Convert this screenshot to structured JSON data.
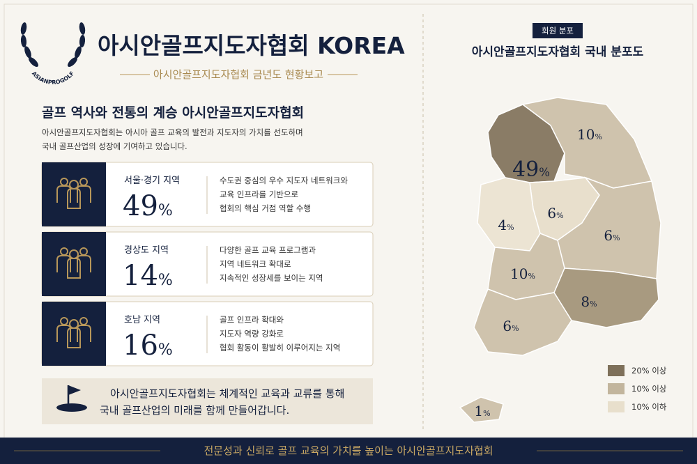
{
  "header": {
    "logo_text": "ASIANPROGOLF",
    "title": "아시안골프지도자협회 KOREA",
    "subtitle": "아시안골프지도자협회 금년도 현황보고"
  },
  "intro": {
    "heading": "골프 역사와 전통의 계승 아시안골프지도자협회",
    "lines": [
      "아시안골프지도자협회는 아시아 골프 교육의 발전과 지도자의 가치를 선도하며",
      "국내 골프산업의 성장에 기여하고 있습니다."
    ]
  },
  "cards": [
    {
      "region": "서울·경기 지역",
      "value": "49",
      "unit": "%",
      "lines": [
        "수도권 중심의 우수 지도자 네트워크와",
        "교육 인프라를 기반으로",
        "협회의 핵심 거점 역할 수행"
      ]
    },
    {
      "region": "경상도 지역",
      "value": "14",
      "unit": "%",
      "lines": [
        "다양한 골프 교육 프로그램과",
        "지역 네트워크 확대로",
        "지속적인 성장세를 보이는 지역"
      ]
    },
    {
      "region": "호남 지역",
      "value": "16",
      "unit": "%",
      "lines": [
        "골프 인프라 확대와",
        "지도자 역량 강화로",
        "협회 활동이 활발히 이루어지는 지역"
      ]
    }
  ],
  "banner": {
    "lines": [
      "아시안골프지도자협회는 체계적인 교육과 교류를 통해",
      "국내 골프산업의 미래를 함께 만들어갑니다."
    ]
  },
  "map": {
    "badge": "회원 분포",
    "title": "아시안골프지도자협회 국내 분포도",
    "regions": [
      {
        "value": "49",
        "unit": "%",
        "color": "#8a7c66"
      },
      {
        "value": "10",
        "unit": "%",
        "color": "#cfc3ad"
      },
      {
        "value": "6",
        "unit": "%",
        "color": "#e8dfcc"
      },
      {
        "value": "4",
        "unit": "%",
        "color": "#ece4d3"
      },
      {
        "value": "6",
        "unit": "%",
        "color": "#cfc3ad"
      },
      {
        "value": "10",
        "unit": "%",
        "color": "#cfc3ad"
      },
      {
        "value": "8",
        "unit": "%",
        "color": "#a89a80"
      },
      {
        "value": "6",
        "unit": "%",
        "color": "#cfc3ad"
      },
      {
        "value": "1",
        "unit": "%",
        "color": "#cfc3ad"
      }
    ],
    "legend": [
      {
        "label": "20% 이상",
        "color": "#7e705a"
      },
      {
        "label": "10% 이상",
        "color": "#c2b59d"
      },
      {
        "label": "10% 이하",
        "color": "#e8dfcc"
      }
    ]
  },
  "footer": {
    "text": "전문성과 신뢰로 골프 교육의 가치를 높이는 아시안골프지도자협회"
  }
}
